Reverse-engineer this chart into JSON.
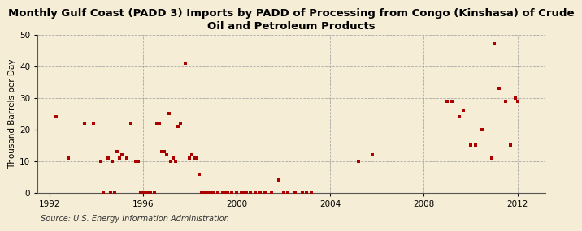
{
  "title": "Monthly Gulf Coast (PADD 3) Imports by PADD of Processing from Congo (Kinshasa) of Crude\nOil and Petroleum Products",
  "ylabel": "Thousand Barrels per Day",
  "source": "Source: U.S. Energy Information Administration",
  "background_color": "#F5EDD6",
  "marker_color": "#AA0000",
  "ylim": [
    0,
    50
  ],
  "xlim_start": 1991.5,
  "xlim_end": 2013.2,
  "xticks": [
    1992,
    1996,
    2000,
    2004,
    2008,
    2012
  ],
  "yticks": [
    0,
    10,
    20,
    30,
    40,
    50
  ],
  "points": [
    [
      1992.3,
      24
    ],
    [
      1992.8,
      11
    ],
    [
      1993.5,
      22
    ],
    [
      1993.9,
      22
    ],
    [
      1994.2,
      10
    ],
    [
      1994.5,
      11
    ],
    [
      1994.7,
      10
    ],
    [
      1994.9,
      13
    ],
    [
      1995.1,
      12
    ],
    [
      1995.0,
      11
    ],
    [
      1995.3,
      11
    ],
    [
      1995.5,
      22
    ],
    [
      1995.7,
      10
    ],
    [
      1995.8,
      10
    ],
    [
      1994.3,
      0
    ],
    [
      1994.6,
      0
    ],
    [
      1994.8,
      0
    ],
    [
      1995.9,
      0
    ],
    [
      1996.0,
      0
    ],
    [
      1996.1,
      0
    ],
    [
      1996.2,
      0
    ],
    [
      1996.3,
      0
    ],
    [
      1996.5,
      0
    ],
    [
      1996.6,
      22
    ],
    [
      1996.7,
      22
    ],
    [
      1996.8,
      13
    ],
    [
      1996.9,
      13
    ],
    [
      1997.0,
      12
    ],
    [
      1997.1,
      25
    ],
    [
      1997.2,
      10
    ],
    [
      1997.3,
      11
    ],
    [
      1997.4,
      10
    ],
    [
      1997.5,
      21
    ],
    [
      1997.6,
      22
    ],
    [
      1997.8,
      41
    ],
    [
      1998.0,
      11
    ],
    [
      1998.1,
      12
    ],
    [
      1998.2,
      11
    ],
    [
      1998.3,
      11
    ],
    [
      1998.4,
      6
    ],
    [
      1998.5,
      0
    ],
    [
      1998.6,
      0
    ],
    [
      1998.7,
      0
    ],
    [
      1998.8,
      0
    ],
    [
      1999.0,
      0
    ],
    [
      1999.2,
      0
    ],
    [
      1999.4,
      0
    ],
    [
      1999.5,
      0
    ],
    [
      1999.6,
      0
    ],
    [
      1999.8,
      0
    ],
    [
      2000.0,
      0
    ],
    [
      2000.2,
      0
    ],
    [
      2000.3,
      0
    ],
    [
      2000.4,
      0
    ],
    [
      2000.6,
      0
    ],
    [
      2000.8,
      0
    ],
    [
      2001.0,
      0
    ],
    [
      2001.2,
      0
    ],
    [
      2001.5,
      0
    ],
    [
      2001.8,
      4
    ],
    [
      2002.0,
      0
    ],
    [
      2002.2,
      0
    ],
    [
      2002.5,
      0
    ],
    [
      2002.8,
      0
    ],
    [
      2003.0,
      0
    ],
    [
      2003.2,
      0
    ],
    [
      2005.2,
      10
    ],
    [
      2005.8,
      12
    ],
    [
      2009.0,
      29
    ],
    [
      2009.2,
      29
    ],
    [
      2009.5,
      24
    ],
    [
      2009.7,
      26
    ],
    [
      2010.0,
      15
    ],
    [
      2010.2,
      15
    ],
    [
      2010.5,
      20
    ],
    [
      2010.9,
      11
    ],
    [
      2011.0,
      47
    ],
    [
      2011.2,
      33
    ],
    [
      2011.5,
      29
    ],
    [
      2011.7,
      15
    ],
    [
      2011.9,
      30
    ],
    [
      2012.0,
      29
    ]
  ]
}
